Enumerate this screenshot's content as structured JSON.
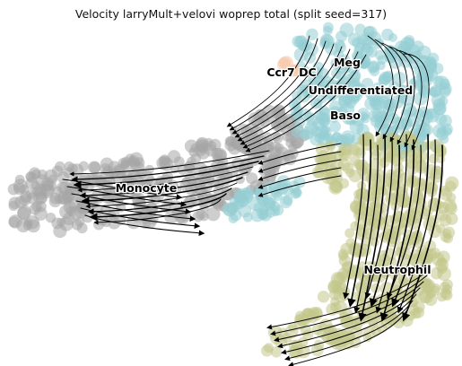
{
  "title": "Velocity larryMult+velovi woprep total (split seed=317)",
  "chart_data": {
    "type": "scatter",
    "subtype": "embedding with velocity streamlines",
    "axes_visible": false,
    "grid": false,
    "legend": "on data",
    "cluster_colors": {
      "Monocyte": "#a6a6a6",
      "Neutrophil": "#c2c78a",
      "Baso": "#93cdd3",
      "Undifferentiated": "#93cdd3",
      "Meg": "#9fd3d8",
      "Ccr7 DC": "#f5c9a9"
    },
    "cluster_labels": [
      "Ccr7 DC",
      "Meg",
      "Undifferentiated",
      "Baso",
      "Monocyte",
      "Neutrophil"
    ]
  }
}
